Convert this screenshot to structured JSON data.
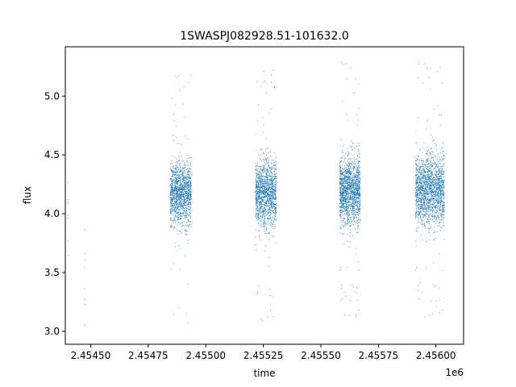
{
  "chart_data": {
    "type": "scatter",
    "title": "1SWASPJ082928.51-101632.0",
    "xlabel": "time",
    "ylabel": "flux",
    "x_offset_label": "1e6",
    "xlim": [
      2454390,
      2456120
    ],
    "ylim": [
      2.89,
      5.42
    ],
    "x_ticks": [
      2454500,
      2454750,
      2455000,
      2455250,
      2455500,
      2455750,
      2456000
    ],
    "x_tick_labels": [
      "2.45450",
      "2.45475",
      "2.45500",
      "2.45525",
      "2.45550",
      "2.45575",
      "2.45600"
    ],
    "y_ticks": [
      3.0,
      3.5,
      4.0,
      4.5,
      5.0
    ],
    "y_tick_labels": [
      "3.0",
      "3.5",
      "4.0",
      "4.5",
      "5.0"
    ],
    "grid": false,
    "marker_color": "#1f77b4",
    "series": [
      {
        "clusters": [
          {
            "x_range": [
              2454398,
              2454402
            ],
            "y_center": 4.0,
            "y_spread": 0.22,
            "n": 8
          },
          {
            "x_range": [
              2454470,
              2454473
            ],
            "y_center": 3.6,
            "y_spread": 0.3,
            "n": 8
          },
          {
            "x_range": [
              2454845,
              2454935
            ],
            "y_center": 4.17,
            "y_spread": 0.13,
            "n": 1400
          },
          {
            "x_range": [
              2455215,
              2455305
            ],
            "y_center": 4.17,
            "y_spread": 0.14,
            "n": 1400
          },
          {
            "x_range": [
              2455580,
              2455670
            ],
            "y_center": 4.2,
            "y_spread": 0.14,
            "n": 1600
          },
          {
            "x_range": [
              2455910,
              2456035
            ],
            "y_center": 4.2,
            "y_spread": 0.15,
            "n": 1800
          }
        ]
      }
    ]
  }
}
